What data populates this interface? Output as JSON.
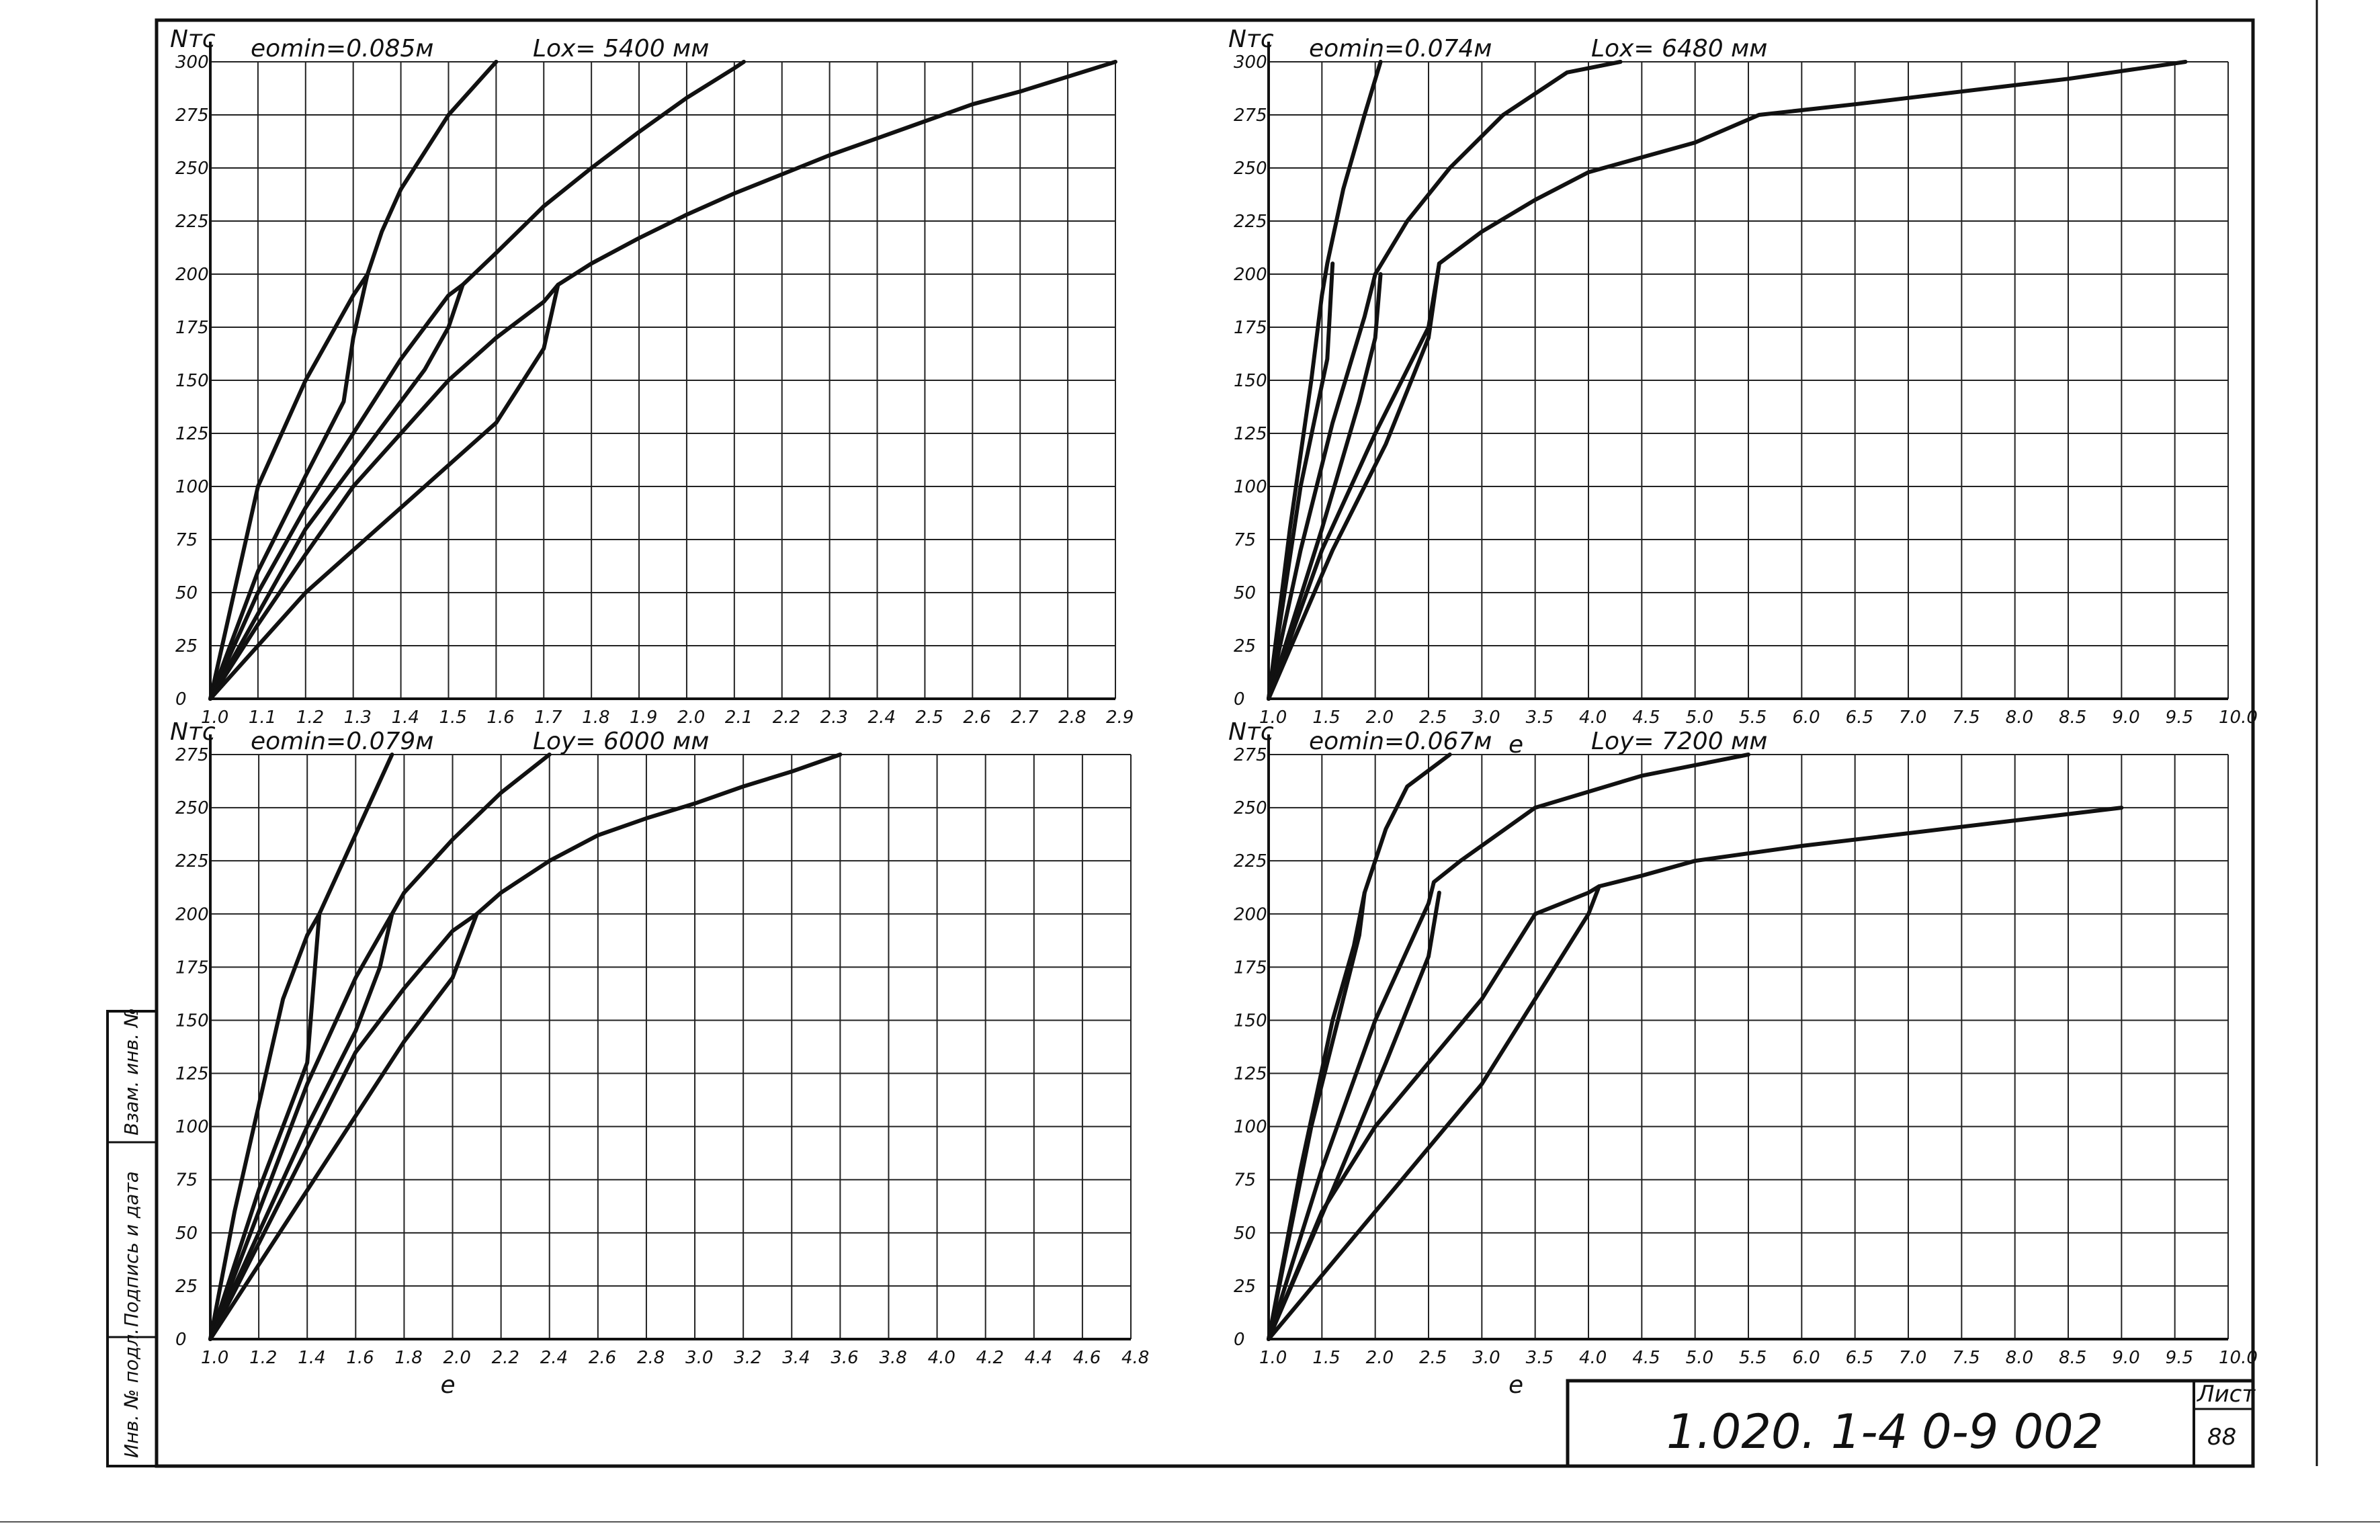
{
  "sheet": {
    "doc_code": "1.020. 1-4",
    "doc_sub": "0-9 002",
    "sheet_label": "Лист",
    "sheet_number": "88",
    "side_labels": [
      "Инв. № подл.",
      "Подпись и дата",
      "Взам. инв. №"
    ]
  },
  "chart_data": [
    {
      "type": "line",
      "position": "top-left",
      "ylabel": "Nтс",
      "xlabel": "",
      "xlabel_bottom": "",
      "emin_label": "eomin=0.085м",
      "l_label": "Lox= 5400 мм",
      "xlim": [
        1.0,
        2.9
      ],
      "ylim": [
        0,
        300
      ],
      "xticks": [
        "1.0",
        "1.1",
        "1.2",
        "1.3",
        "1.4",
        "1.5",
        "1.6",
        "1.7",
        "1.8",
        "1.9",
        "2.0",
        "2.1",
        "2.2",
        "2.3",
        "2.4",
        "2.5",
        "2.6",
        "2.7",
        "2.8",
        "2.9"
      ],
      "yticks": [
        "0",
        "25",
        "50",
        "75",
        "100",
        "125",
        "150",
        "175",
        "200",
        "225",
        "250",
        "275",
        "300"
      ],
      "grid": true,
      "series": [
        {
          "x": [
            1.0,
            1.05,
            1.1,
            1.2,
            1.3,
            1.33,
            1.36,
            1.4,
            1.5,
            1.6
          ],
          "y": [
            0,
            50,
            100,
            150,
            190,
            200,
            220,
            240,
            275,
            300
          ]
        },
        {
          "x": [
            1.0,
            1.1,
            1.2,
            1.3,
            1.4,
            1.5,
            1.53,
            1.6,
            1.7,
            1.8,
            1.9,
            2.0,
            2.1,
            2.12
          ],
          "y": [
            0,
            50,
            90,
            125,
            160,
            190,
            195,
            210,
            232,
            250,
            267,
            283,
            297,
            300
          ]
        },
        {
          "x": [
            1.0,
            1.1,
            1.2,
            1.3,
            1.4,
            1.5,
            1.6,
            1.7,
            1.73,
            1.8,
            1.9,
            2.0,
            2.1,
            2.2,
            2.3,
            2.4,
            2.5,
            2.6,
            2.7,
            2.8,
            2.9
          ],
          "y": [
            0,
            35,
            68,
            100,
            125,
            150,
            170,
            187,
            195,
            205,
            217,
            228,
            238,
            247,
            256,
            264,
            272,
            280,
            286,
            293,
            300
          ]
        },
        {
          "x": [
            1.0,
            1.1,
            1.2,
            1.28,
            1.3,
            1.33
          ],
          "y": [
            0,
            60,
            105,
            140,
            170,
            200
          ]
        },
        {
          "x": [
            1.0,
            1.1,
            1.2,
            1.3,
            1.4,
            1.45,
            1.5,
            1.53
          ],
          "y": [
            0,
            40,
            80,
            110,
            140,
            155,
            175,
            195
          ]
        },
        {
          "x": [
            1.0,
            1.1,
            1.2,
            1.3,
            1.4,
            1.5,
            1.6,
            1.7,
            1.73
          ],
          "y": [
            0,
            25,
            50,
            70,
            90,
            110,
            130,
            165,
            195
          ]
        }
      ]
    },
    {
      "type": "line",
      "position": "top-right",
      "ylabel": "Nтс",
      "xlabel_bottom": "e",
      "emin_label": "eomin=0.074м",
      "l_label": "Lox= 6480 мм",
      "xlim": [
        1.0,
        10.0
      ],
      "ylim": [
        0,
        300
      ],
      "xticks": [
        "1.0",
        "1.5",
        "2.0",
        "2.5",
        "3.0",
        "3.5",
        "4.0",
        "4.5",
        "5.0",
        "5.5",
        "6.0",
        "6.5",
        "7.0",
        "7.5",
        "8.0",
        "8.5",
        "9.0",
        "9.5",
        "10.0"
      ],
      "yticks": [
        "0",
        "25",
        "50",
        "75",
        "100",
        "125",
        "150",
        "175",
        "200",
        "225",
        "250",
        "275",
        "300"
      ],
      "grid": true,
      "series": [
        {
          "x": [
            1.0,
            1.2,
            1.4,
            1.5,
            1.55,
            1.7,
            1.9,
            2.05
          ],
          "y": [
            0,
            80,
            150,
            190,
            205,
            240,
            275,
            300
          ]
        },
        {
          "x": [
            1.0,
            1.3,
            1.6,
            1.9,
            2.0,
            2.3,
            2.7,
            3.2,
            3.8,
            4.3
          ],
          "y": [
            0,
            70,
            130,
            180,
            200,
            225,
            250,
            275,
            295,
            300
          ]
        },
        {
          "x": [
            1.0,
            1.5,
            2.0,
            2.5,
            2.6,
            3.0,
            3.5,
            4.0,
            5.0,
            5.6,
            6.5,
            7.5,
            8.5,
            9.6
          ],
          "y": [
            0,
            70,
            125,
            175,
            205,
            220,
            235,
            248,
            262,
            275,
            280,
            286,
            292,
            300
          ]
        },
        {
          "x": [
            1.0,
            1.3,
            1.55,
            1.6
          ],
          "y": [
            0,
            100,
            160,
            205
          ]
        },
        {
          "x": [
            1.0,
            1.5,
            1.85,
            2.0,
            2.05
          ],
          "y": [
            0,
            80,
            140,
            170,
            200
          ]
        },
        {
          "x": [
            1.0,
            1.6,
            2.1,
            2.5,
            2.6
          ],
          "y": [
            0,
            70,
            120,
            170,
            205
          ]
        }
      ]
    },
    {
      "type": "line",
      "position": "bottom-left",
      "ylabel": "Nтс",
      "xlabel": "",
      "xlabel_bottom": "e",
      "emin_label": "eomin=0.079м",
      "l_label": "Loy= 6000 мм",
      "xlim": [
        1.0,
        4.8
      ],
      "ylim": [
        0,
        275
      ],
      "xticks": [
        "1.0",
        "1.2",
        "1.4",
        "1.6",
        "1.8",
        "2.0",
        "2.2",
        "2.4",
        "2.6",
        "2.8",
        "3.0",
        "3.2",
        "3.4",
        "3.6",
        "3.8",
        "4.0",
        "4.2",
        "4.4",
        "4.6",
        "4.8"
      ],
      "yticks": [
        "0",
        "25",
        "50",
        "75",
        "100",
        "125",
        "150",
        "175",
        "200",
        "225",
        "250",
        "275"
      ],
      "grid": true,
      "series": [
        {
          "x": [
            1.0,
            1.1,
            1.2,
            1.3,
            1.4,
            1.45,
            1.55,
            1.65,
            1.75
          ],
          "y": [
            0,
            60,
            110,
            160,
            190,
            200,
            225,
            250,
            275
          ]
        },
        {
          "x": [
            1.0,
            1.2,
            1.4,
            1.6,
            1.75,
            1.8,
            2.0,
            2.2,
            2.4
          ],
          "y": [
            0,
            60,
            120,
            170,
            200,
            210,
            235,
            257,
            275
          ]
        },
        {
          "x": [
            1.0,
            1.2,
            1.4,
            1.6,
            1.8,
            2.0,
            2.1,
            2.2,
            2.4,
            2.6,
            2.8,
            3.0,
            3.2,
            3.4,
            3.6
          ],
          "y": [
            0,
            45,
            90,
            135,
            165,
            192,
            200,
            210,
            225,
            237,
            245,
            252,
            260,
            267,
            275
          ]
        },
        {
          "x": [
            1.0,
            1.2,
            1.4,
            1.45
          ],
          "y": [
            0,
            70,
            130,
            200
          ]
        },
        {
          "x": [
            1.0,
            1.2,
            1.4,
            1.6,
            1.7,
            1.75
          ],
          "y": [
            0,
            50,
            100,
            145,
            175,
            200
          ]
        },
        {
          "x": [
            1.0,
            1.2,
            1.4,
            1.6,
            1.8,
            2.0,
            2.05,
            2.1
          ],
          "y": [
            0,
            35,
            70,
            105,
            140,
            170,
            185,
            200
          ]
        }
      ]
    },
    {
      "type": "line",
      "position": "bottom-right",
      "ylabel": "Nтс",
      "xlabel_bottom": "e",
      "emin_label": "eomin=0.067м",
      "l_label": "Loy= 7200 мм",
      "xlim": [
        1.0,
        10.0
      ],
      "ylim": [
        0,
        275
      ],
      "xticks": [
        "1.0",
        "1.5",
        "2.0",
        "2.5",
        "3.0",
        "3.5",
        "4.0",
        "4.5",
        "5.0",
        "5.5",
        "6.0",
        "6.5",
        "7.0",
        "7.5",
        "8.0",
        "8.5",
        "9.0",
        "9.5",
        "10.0"
      ],
      "yticks": [
        "0",
        "25",
        "50",
        "75",
        "100",
        "125",
        "150",
        "175",
        "200",
        "225",
        "250",
        "275"
      ],
      "grid": true,
      "series": [
        {
          "x": [
            1.0,
            1.3,
            1.6,
            1.8,
            1.9,
            2.1,
            2.3,
            2.7
          ],
          "y": [
            0,
            80,
            150,
            185,
            210,
            240,
            260,
            275
          ]
        },
        {
          "x": [
            1.0,
            1.5,
            2.0,
            2.5,
            2.55,
            2.8,
            3.5,
            4.5,
            5.5
          ],
          "y": [
            0,
            80,
            150,
            205,
            215,
            225,
            250,
            265,
            275
          ]
        },
        {
          "x": [
            1.0,
            1.5,
            2.0,
            3.0,
            3.5,
            4.0,
            4.1,
            4.5,
            5.0,
            6.0,
            7.0,
            8.0,
            9.0
          ],
          "y": [
            0,
            60,
            100,
            160,
            200,
            210,
            213,
            218,
            225,
            232,
            238,
            244,
            250
          ]
        },
        {
          "x": [
            1.0,
            1.4,
            1.7,
            1.85,
            1.9
          ],
          "y": [
            0,
            100,
            160,
            190,
            210
          ]
        },
        {
          "x": [
            1.0,
            1.6,
            2.1,
            2.5,
            2.6
          ],
          "y": [
            0,
            70,
            130,
            180,
            210
          ]
        },
        {
          "x": [
            1.0,
            2.0,
            3.0,
            4.0,
            4.1
          ],
          "y": [
            0,
            60,
            120,
            200,
            213
          ]
        }
      ]
    }
  ]
}
